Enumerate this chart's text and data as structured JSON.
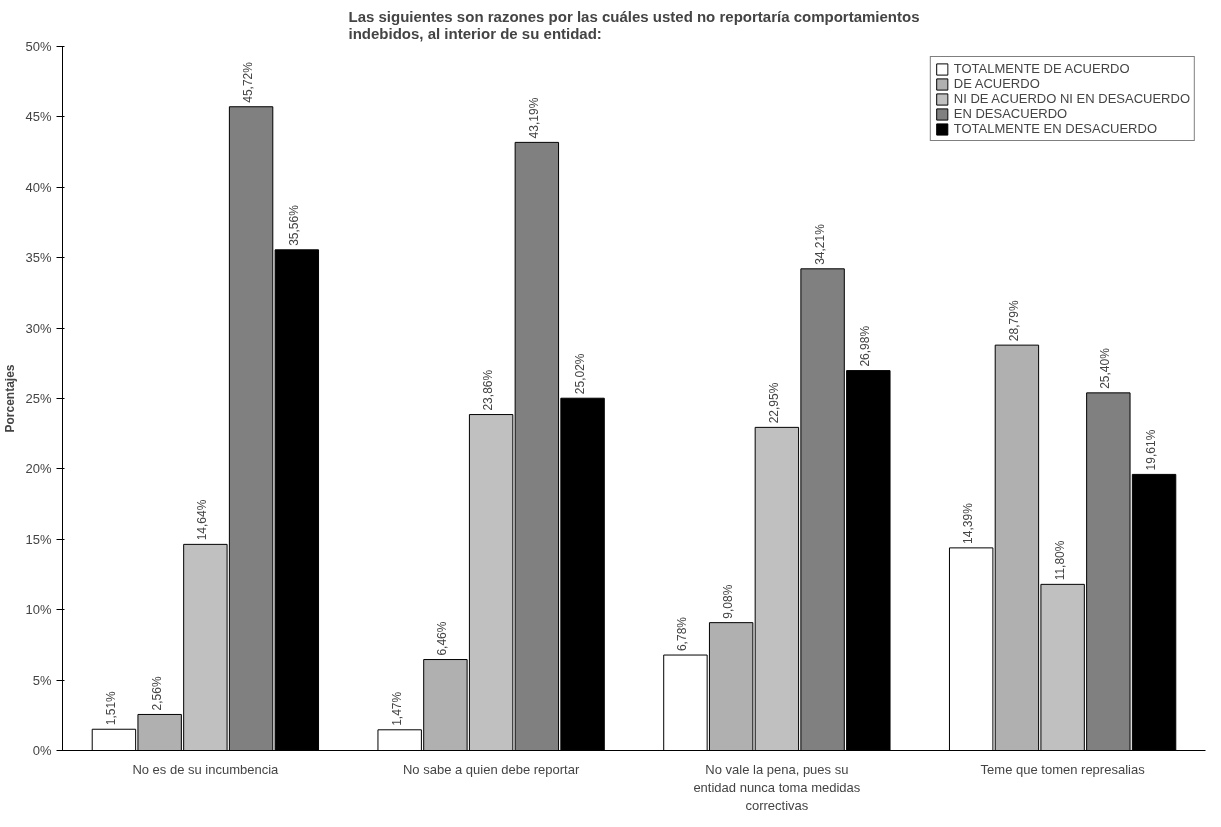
{
  "chart_data": {
    "type": "bar",
    "title": "Las siguientes son razones por las cuáles usted no reportaría comportamientos indebidos,  al interior de su entidad:",
    "ylabel": "Porcentajes",
    "categories": [
      "No es de su incumbencia",
      "No sabe a quien debe reportar",
      "No vale la pena, pues su entidad nunca toma medidas correctivas",
      "Teme que tomen represalias"
    ],
    "series": [
      {
        "name": "TOTALMENTE DE ACUERDO",
        "color": "#ffffff",
        "values": [
          1.51,
          1.47,
          6.78,
          14.39
        ],
        "value_labels": [
          "1,51%",
          "1,47%",
          "6,78%",
          "14,39%"
        ]
      },
      {
        "name": "DE ACUERDO",
        "color": "#b0b0b0",
        "values": [
          2.56,
          6.46,
          9.08,
          28.79
        ],
        "value_labels": [
          "2,56%",
          "6,46%",
          "9,08%",
          "28,79%"
        ]
      },
      {
        "name": "NI DE ACUERDO NI EN DESACUERDO",
        "color": "#c0c0c0",
        "values": [
          14.64,
          23.86,
          22.95,
          11.8
        ],
        "value_labels": [
          "14,64%",
          "23,86%",
          "22,95%",
          "11,80%"
        ]
      },
      {
        "name": "EN DESACUERDO",
        "color": "#808080",
        "values": [
          45.72,
          43.19,
          34.21,
          25.4
        ],
        "value_labels": [
          "45,72%",
          "43,19%",
          "34,21%",
          "25,40%"
        ]
      },
      {
        "name": "TOTALMENTE EN DESACUERDO",
        "color": "#000000",
        "values": [
          35.56,
          25.02,
          26.98,
          19.61
        ],
        "value_labels": [
          "35,56%",
          "25,02%",
          "26,98%",
          "19,61%"
        ]
      }
    ],
    "ylim": [
      0,
      50
    ],
    "yticks": [
      {
        "value": 0,
        "label": "0%"
      },
      {
        "value": 5,
        "label": "5%"
      },
      {
        "value": 10,
        "label": "10%"
      },
      {
        "value": 15,
        "label": "15%"
      },
      {
        "value": 20,
        "label": "20%"
      },
      {
        "value": 25,
        "label": "25%"
      },
      {
        "value": 30,
        "label": "30%"
      },
      {
        "value": 35,
        "label": "35%"
      },
      {
        "value": 40,
        "label": "40%"
      },
      {
        "value": 45,
        "label": "45%"
      },
      {
        "value": 50,
        "label": "50%"
      }
    ],
    "grid": false,
    "legend": "top right"
  }
}
